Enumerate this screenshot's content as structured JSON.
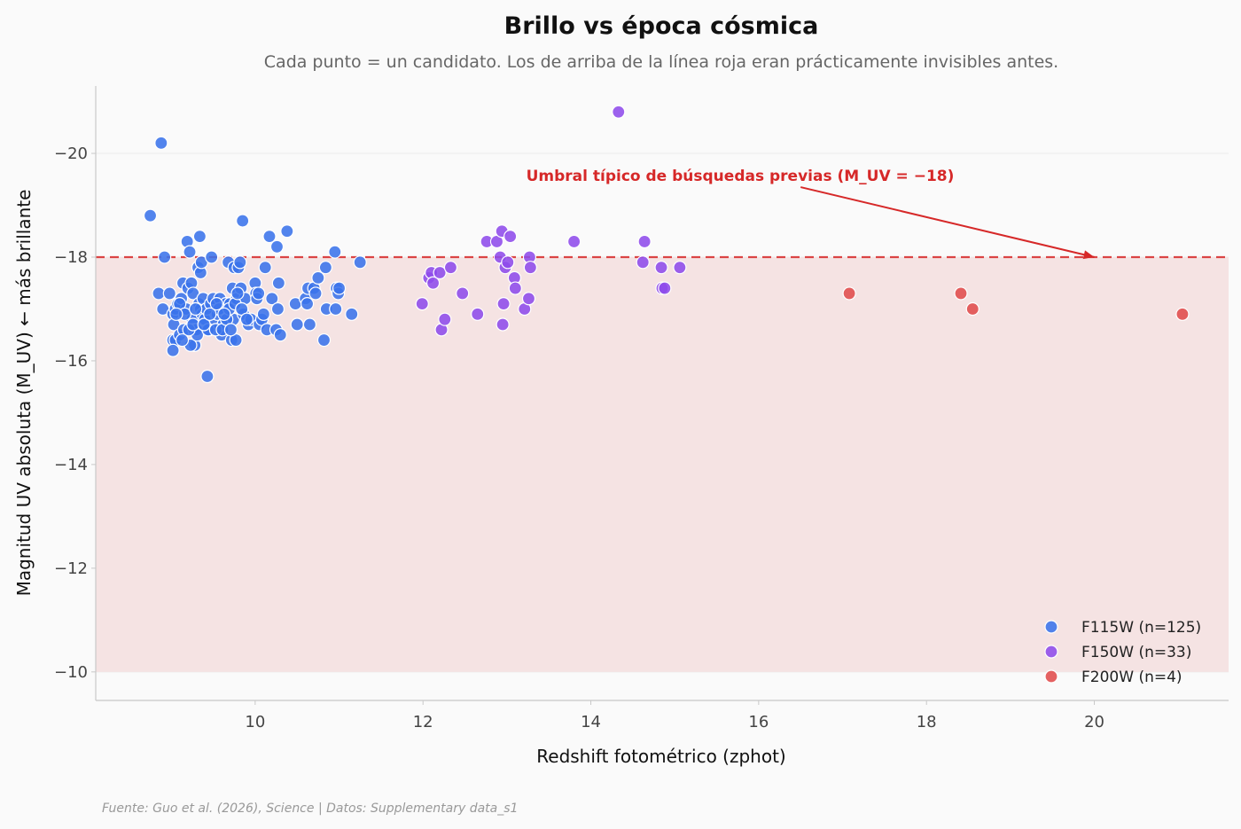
{
  "chart_data": {
    "type": "scatter",
    "title": "Brillo vs época cósmica",
    "subtitle": "Cada punto = un candidato. Los de arriba de la línea roja eran prácticamente invisibles antes.",
    "xlabel": "Redshift fotométrico (zphot)",
    "ylabel": "Magnitud UV absoluta (M_UV)  ← más brillante",
    "xlim": [
      8.1,
      21.6
    ],
    "ylim": [
      -9.45,
      -21.3
    ],
    "y_inverted": true,
    "x_ticks": [
      10,
      12,
      14,
      16,
      18,
      20
    ],
    "y_ticks": [
      -20,
      -18,
      -16,
      -14,
      -12,
      -10
    ],
    "y_tick_labels": [
      "−20",
      "−18",
      "−16",
      "−14",
      "−12",
      "−10"
    ],
    "grid": "horizontal",
    "threshold": {
      "y": -18,
      "label": "Umbral típico de búsquedas previas (M_UV = −18)",
      "arrow_from": [
        16.5,
        -19.35
      ],
      "arrow_to": [
        20.0,
        -18.0
      ],
      "color": "#d62828"
    },
    "shaded_region": {
      "y_from": -18,
      "y_to": -10,
      "color": "#f5e3e3"
    },
    "legend_position": "bottom-right",
    "series": [
      {
        "name": "F115W (n=125)",
        "color": "#3a73ea",
        "points": [
          [
            8.75,
            -18.8
          ],
          [
            8.88,
            -20.2
          ],
          [
            8.92,
            -18.0
          ],
          [
            8.85,
            -17.3
          ],
          [
            8.98,
            -17.3
          ],
          [
            8.9,
            -17.0
          ],
          [
            9.02,
            -16.9
          ],
          [
            9.05,
            -17.0
          ],
          [
            9.03,
            -16.7
          ],
          [
            9.02,
            -16.4
          ],
          [
            9.05,
            -16.4
          ],
          [
            9.02,
            -16.2
          ],
          [
            9.08,
            -17.1
          ],
          [
            9.12,
            -17.2
          ],
          [
            9.14,
            -17.5
          ],
          [
            9.1,
            -16.5
          ],
          [
            9.15,
            -16.6
          ],
          [
            9.18,
            -17.0
          ],
          [
            9.19,
            -18.3
          ],
          [
            9.22,
            -18.1
          ],
          [
            9.2,
            -17.4
          ],
          [
            9.24,
            -17.5
          ],
          [
            9.26,
            -17.3
          ],
          [
            9.25,
            -16.8
          ],
          [
            9.27,
            -16.6
          ],
          [
            9.28,
            -16.3
          ],
          [
            9.23,
            -16.3
          ],
          [
            9.3,
            -16.6
          ],
          [
            9.32,
            -17.8
          ],
          [
            9.34,
            -18.4
          ],
          [
            9.35,
            -17.7
          ],
          [
            9.36,
            -17.9
          ],
          [
            9.33,
            -17.1
          ],
          [
            9.35,
            -17.0
          ],
          [
            9.37,
            -16.9
          ],
          [
            9.38,
            -17.2
          ],
          [
            9.4,
            -16.8
          ],
          [
            9.42,
            -17.0
          ],
          [
            9.43,
            -15.7
          ],
          [
            9.45,
            -16.6
          ],
          [
            9.48,
            -18.0
          ],
          [
            9.47,
            -17.1
          ],
          [
            9.5,
            -17.2
          ],
          [
            9.52,
            -16.7
          ],
          [
            9.55,
            -16.9
          ],
          [
            9.56,
            -16.6
          ],
          [
            9.58,
            -17.2
          ],
          [
            9.6,
            -16.5
          ],
          [
            9.62,
            -16.7
          ],
          [
            9.65,
            -17.1
          ],
          [
            9.68,
            -17.9
          ],
          [
            9.7,
            -17.1
          ],
          [
            9.72,
            -16.4
          ],
          [
            9.73,
            -17.4
          ],
          [
            9.74,
            -16.8
          ],
          [
            9.75,
            -17.8
          ],
          [
            9.77,
            -16.4
          ],
          [
            9.78,
            -17.2
          ],
          [
            9.8,
            -17.8
          ],
          [
            9.82,
            -17.9
          ],
          [
            9.83,
            -17.4
          ],
          [
            9.85,
            -18.7
          ],
          [
            9.86,
            -16.9
          ],
          [
            9.88,
            -17.2
          ],
          [
            9.92,
            -16.7
          ],
          [
            9.95,
            -16.8
          ],
          [
            10.0,
            -17.5
          ],
          [
            10.01,
            -17.3
          ],
          [
            10.02,
            -17.2
          ],
          [
            10.05,
            -16.7
          ],
          [
            10.08,
            -16.8
          ],
          [
            10.12,
            -17.8
          ],
          [
            10.14,
            -16.6
          ],
          [
            10.17,
            -18.4
          ],
          [
            10.2,
            -17.2
          ],
          [
            10.25,
            -16.6
          ],
          [
            10.26,
            -18.2
          ],
          [
            10.27,
            -17.0
          ],
          [
            10.28,
            -17.5
          ],
          [
            10.3,
            -16.5
          ],
          [
            10.38,
            -18.5
          ],
          [
            10.48,
            -17.1
          ],
          [
            10.5,
            -16.7
          ],
          [
            10.6,
            -17.2
          ],
          [
            10.62,
            -17.1
          ],
          [
            10.63,
            -17.4
          ],
          [
            10.65,
            -16.7
          ],
          [
            10.7,
            -17.4
          ],
          [
            10.72,
            -17.3
          ],
          [
            10.75,
            -17.6
          ],
          [
            10.82,
            -16.4
          ],
          [
            10.84,
            -17.8
          ],
          [
            10.85,
            -17.0
          ],
          [
            10.95,
            -18.1
          ],
          [
            10.96,
            -17.0
          ],
          [
            10.97,
            -17.4
          ],
          [
            10.99,
            -17.3
          ],
          [
            11.0,
            -17.4
          ],
          [
            11.15,
            -16.9
          ],
          [
            11.25,
            -17.9
          ],
          [
            9.1,
            -17.1
          ],
          [
            9.16,
            -16.9
          ],
          [
            9.29,
            -17.0
          ],
          [
            9.31,
            -16.5
          ],
          [
            9.44,
            -16.6
          ],
          [
            9.53,
            -16.6
          ],
          [
            9.57,
            -17.0
          ],
          [
            9.61,
            -16.6
          ],
          [
            9.66,
            -16.8
          ],
          [
            9.69,
            -17.0
          ],
          [
            9.76,
            -17.1
          ],
          [
            9.84,
            -17.0
          ],
          [
            9.9,
            -16.8
          ],
          [
            10.04,
            -17.3
          ],
          [
            10.1,
            -16.9
          ],
          [
            9.21,
            -16.6
          ],
          [
            9.26,
            -16.7
          ],
          [
            9.39,
            -16.7
          ],
          [
            9.46,
            -16.9
          ],
          [
            9.54,
            -17.1
          ],
          [
            9.63,
            -16.9
          ],
          [
            9.71,
            -16.6
          ],
          [
            9.79,
            -17.3
          ],
          [
            9.13,
            -16.4
          ],
          [
            9.06,
            -16.9
          ]
        ]
      },
      {
        "name": "F150W (n=33)",
        "color": "#8e4bea",
        "points": [
          [
            14.33,
            -20.8
          ],
          [
            11.99,
            -17.1
          ],
          [
            12.07,
            -17.6
          ],
          [
            12.1,
            -17.7
          ],
          [
            12.12,
            -17.5
          ],
          [
            12.2,
            -17.7
          ],
          [
            12.22,
            -16.6
          ],
          [
            12.26,
            -16.8
          ],
          [
            12.33,
            -17.8
          ],
          [
            12.47,
            -17.3
          ],
          [
            12.65,
            -16.9
          ],
          [
            12.76,
            -18.3
          ],
          [
            12.88,
            -18.3
          ],
          [
            12.92,
            -18.0
          ],
          [
            12.94,
            -18.5
          ],
          [
            12.95,
            -16.7
          ],
          [
            12.96,
            -17.1
          ],
          [
            12.98,
            -17.8
          ],
          [
            13.01,
            -17.9
          ],
          [
            13.04,
            -18.4
          ],
          [
            13.09,
            -17.6
          ],
          [
            13.1,
            -17.4
          ],
          [
            13.21,
            -17.0
          ],
          [
            13.26,
            -17.2
          ],
          [
            13.27,
            -18.0
          ],
          [
            13.28,
            -17.8
          ],
          [
            13.8,
            -18.3
          ],
          [
            14.62,
            -17.9
          ],
          [
            14.64,
            -18.3
          ],
          [
            14.84,
            -17.8
          ],
          [
            14.85,
            -17.4
          ],
          [
            14.88,
            -17.4
          ],
          [
            15.06,
            -17.8
          ]
        ]
      },
      {
        "name": "F200W (n=4)",
        "color": "#e04b4b",
        "points": [
          [
            17.08,
            -17.3
          ],
          [
            18.41,
            -17.3
          ],
          [
            18.55,
            -17.0
          ],
          [
            21.05,
            -16.9
          ]
        ]
      }
    ]
  },
  "source": "Fuente: Guo et al. (2026), Science | Datos: Supplementary data_s1"
}
